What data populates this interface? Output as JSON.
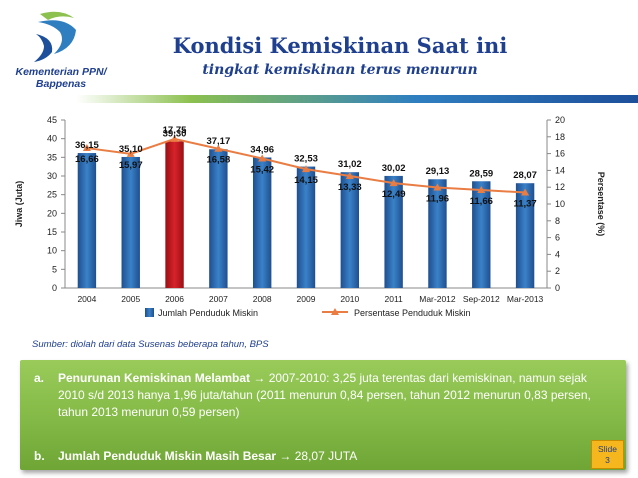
{
  "header": {
    "org_line1": "Kementerian PPN/",
    "org_line2": "Bappenas",
    "title": "Kondisi Kemiskinan Saat ini",
    "subtitle": "tingkat kemiskinan terus menurun"
  },
  "chart_data": {
    "type": "bar",
    "categories": [
      "2004",
      "2005",
      "2006",
      "2007",
      "2008",
      "2009",
      "2010",
      "2011",
      "Mar-2012",
      "Sep-2012",
      "Mar-2013"
    ],
    "series": [
      {
        "name": "Jumlah Penduduk Miskin",
        "type": "bar",
        "axis": "left",
        "values": [
          36.15,
          35.1,
          39.3,
          37.17,
          34.96,
          32.53,
          31.02,
          30.02,
          29.13,
          28.59,
          28.07
        ],
        "color": "#2e6fb7",
        "highlight_color": "#c8161d",
        "highlight_index": 2
      },
      {
        "name": "Persentase Penduduk Miskin",
        "type": "line",
        "axis": "right",
        "values": [
          16.66,
          15.97,
          17.75,
          16.58,
          15.42,
          14.15,
          13.33,
          12.49,
          11.96,
          11.66,
          11.37
        ],
        "color": "#e97d43"
      }
    ],
    "ylabel": "Jiwa  (Juta)",
    "y2label": "Persentase  (%)",
    "ylim": [
      0,
      45
    ],
    "yticks": [
      0,
      5,
      10,
      15,
      20,
      25,
      30,
      35,
      40,
      45
    ],
    "y2lim": [
      0,
      20
    ],
    "y2ticks": [
      0,
      2,
      4,
      6,
      8,
      10,
      12,
      14,
      16,
      18,
      20
    ],
    "legend": "bottom",
    "grid": false
  },
  "source": "Sumber:  diolah dari data Susenas beberapa tahun, BPS",
  "points": {
    "a_prefix": "a.",
    "a_bold": "Penurunan Kemiskinan Melambat",
    "a_arrow": "→",
    "a_text": " 2007-2010: 3,25 juta terentas dari kemiskinan, namun sejak 2010 s/d 2013 hanya 1,96 juta/tahun (2011 menurun 0,84 persen, tahun 2012 menurun 0,83 persen, tahun 2013 menurun 0,59 persen)",
    "b_prefix": "b.",
    "b_bold": "Jumlah Penduduk Miskin Masih Besar",
    "b_arrow": "→",
    "b_text": " 28,07 JUTA"
  },
  "slide": {
    "label": "Slide",
    "number": "3"
  }
}
